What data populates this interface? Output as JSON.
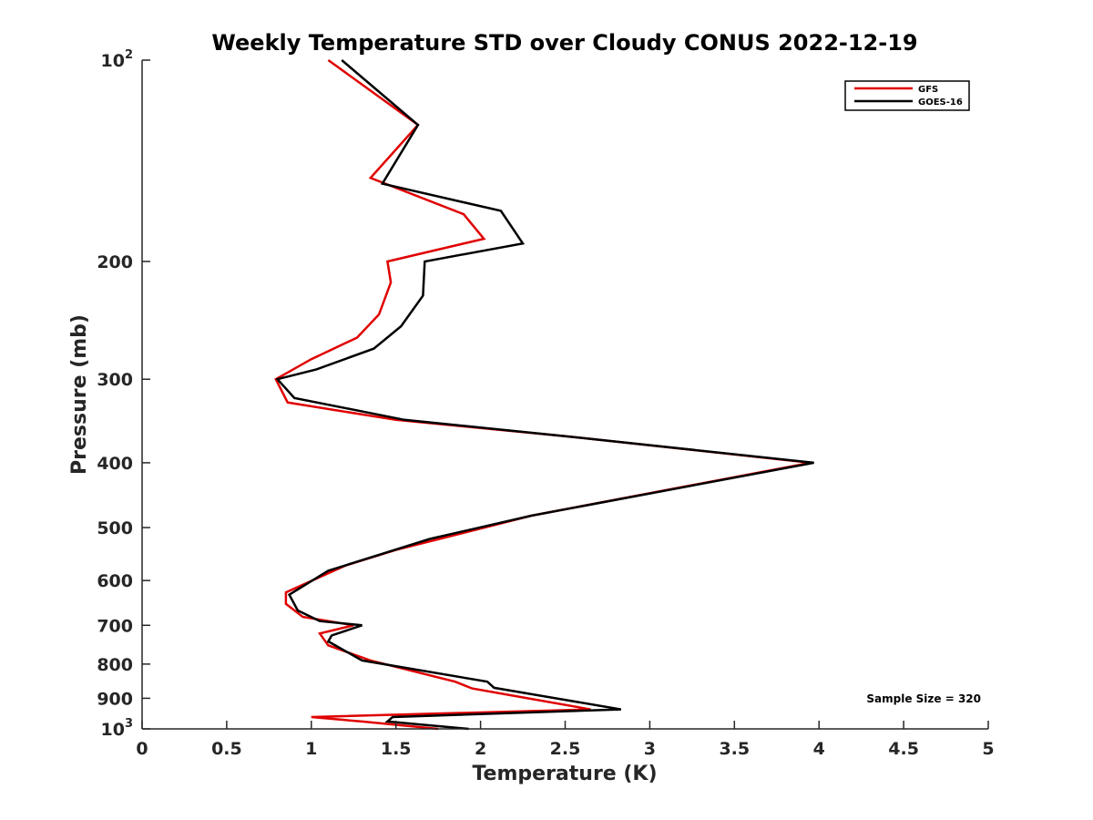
{
  "chart_data": {
    "type": "line",
    "title": "Weekly Temperature STD over Cloudy CONUS 2022-12-19",
    "xlabel": "Temperature (K)",
    "ylabel": "Pressure (mb)",
    "xlim": [
      0,
      5
    ],
    "ylim": [
      100,
      1000
    ],
    "y_scale": "log",
    "y_reversed": true,
    "grid": false,
    "legend_position": "top-right",
    "x_ticks": [
      {
        "value": 0,
        "label": "0"
      },
      {
        "value": 0.5,
        "label": "0.5"
      },
      {
        "value": 1,
        "label": "1"
      },
      {
        "value": 1.5,
        "label": "1.5"
      },
      {
        "value": 2,
        "label": "2"
      },
      {
        "value": 2.5,
        "label": "2.5"
      },
      {
        "value": 3,
        "label": "3"
      },
      {
        "value": 3.5,
        "label": "3.5"
      },
      {
        "value": 4,
        "label": "4"
      },
      {
        "value": 4.5,
        "label": "4.5"
      },
      {
        "value": 5,
        "label": "5"
      }
    ],
    "y_ticks": [
      {
        "value": 100,
        "base": "10",
        "exp": "2"
      },
      {
        "value": 200,
        "base": "200",
        "exp": ""
      },
      {
        "value": 300,
        "base": "300",
        "exp": ""
      },
      {
        "value": 400,
        "base": "400",
        "exp": ""
      },
      {
        "value": 500,
        "base": "500",
        "exp": ""
      },
      {
        "value": 600,
        "base": "600",
        "exp": ""
      },
      {
        "value": 700,
        "base": "700",
        "exp": ""
      },
      {
        "value": 800,
        "base": "800",
        "exp": ""
      },
      {
        "value": 900,
        "base": "900",
        "exp": ""
      },
      {
        "value": 1000,
        "base": "10",
        "exp": "3"
      }
    ],
    "series": [
      {
        "name": "GFS",
        "color": "#e00000",
        "points": [
          [
            1.1,
            100
          ],
          [
            1.63,
            125
          ],
          [
            1.35,
            150
          ],
          [
            1.9,
            170
          ],
          [
            2.02,
            185
          ],
          [
            1.45,
            200
          ],
          [
            1.47,
            215
          ],
          [
            1.4,
            240
          ],
          [
            1.27,
            260
          ],
          [
            1.0,
            280
          ],
          [
            0.79,
            300
          ],
          [
            0.86,
            325
          ],
          [
            1.5,
            345
          ],
          [
            2.5,
            365
          ],
          [
            3.95,
            400
          ],
          [
            2.3,
            480
          ],
          [
            1.5,
            540
          ],
          [
            1.2,
            570
          ],
          [
            0.85,
            625
          ],
          [
            0.85,
            650
          ],
          [
            0.95,
            680
          ],
          [
            1.25,
            700
          ],
          [
            1.05,
            720
          ],
          [
            1.1,
            750
          ],
          [
            1.35,
            790
          ],
          [
            1.85,
            850
          ],
          [
            1.95,
            870
          ],
          [
            2.65,
            935
          ],
          [
            1.0,
            960
          ],
          [
            1.3,
            975
          ],
          [
            1.75,
            1000
          ]
        ]
      },
      {
        "name": "GOES-16",
        "color": "#000000",
        "points": [
          [
            1.18,
            100
          ],
          [
            1.63,
            125
          ],
          [
            1.42,
            153
          ],
          [
            2.12,
            168
          ],
          [
            2.25,
            188
          ],
          [
            1.67,
            200
          ],
          [
            1.66,
            225
          ],
          [
            1.53,
            250
          ],
          [
            1.37,
            270
          ],
          [
            1.03,
            290
          ],
          [
            0.8,
            300
          ],
          [
            0.9,
            320
          ],
          [
            1.55,
            345
          ],
          [
            2.5,
            365
          ],
          [
            3.97,
            400
          ],
          [
            2.3,
            480
          ],
          [
            1.7,
            520
          ],
          [
            1.1,
            580
          ],
          [
            0.87,
            630
          ],
          [
            0.92,
            665
          ],
          [
            1.05,
            690
          ],
          [
            1.3,
            700
          ],
          [
            1.12,
            725
          ],
          [
            1.1,
            740
          ],
          [
            1.3,
            790
          ],
          [
            2.04,
            850
          ],
          [
            2.08,
            868
          ],
          [
            2.83,
            935
          ],
          [
            1.48,
            960
          ],
          [
            1.45,
            975
          ],
          [
            1.93,
            1000
          ]
        ]
      }
    ],
    "annotations": [
      {
        "text": "Sample Size = 320"
      }
    ]
  }
}
